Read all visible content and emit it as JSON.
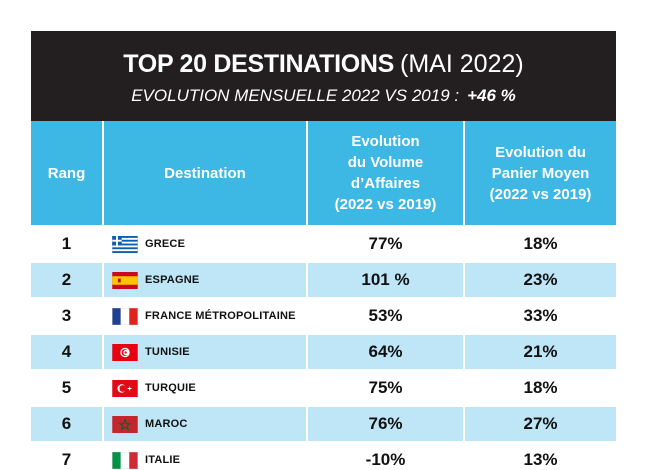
{
  "header": {
    "title_bold": "TOP 20 DESTINATIONS",
    "title_light": "(MAI 2022)",
    "subtitle": "EVOLUTION MENSUELLE 2022 VS 2019 :",
    "subtitle_value": "+46 %"
  },
  "table": {
    "columns": {
      "rang": "Rang",
      "destination": "Destination",
      "volume_line1": "Evolution",
      "volume_line2": "du Volume",
      "volume_line3": "d’Affaires",
      "volume_line4": "(2022 vs 2019)",
      "panier_line1": "Evolution du",
      "panier_line2": "Panier Moyen",
      "panier_line3": "(2022 vs 2019)"
    },
    "rows": [
      {
        "rang": "1",
        "destination": "GRECE",
        "flag": "greece-flag-icon",
        "volume": "77%",
        "panier": "18%"
      },
      {
        "rang": "2",
        "destination": "ESPAGNE",
        "flag": "spain-flag-icon",
        "volume": "101 %",
        "panier": "23%"
      },
      {
        "rang": "3",
        "destination": "FRANCE MÉTROPOLITAINE",
        "flag": "france-flag-icon",
        "volume": "53%",
        "panier": "33%"
      },
      {
        "rang": "4",
        "destination": "TUNISIE",
        "flag": "tunisia-flag-icon",
        "volume": "64%",
        "panier": "21%"
      },
      {
        "rang": "5",
        "destination": "TURQUIE",
        "flag": "turkey-flag-icon",
        "volume": "75%",
        "panier": "18%"
      },
      {
        "rang": "6",
        "destination": "MAROC",
        "flag": "morocco-flag-icon",
        "volume": "76%",
        "panier": "27%"
      },
      {
        "rang": "7",
        "destination": "ITALIE",
        "flag": "italy-flag-icon",
        "volume": "-10%",
        "panier": "13%"
      }
    ]
  },
  "colors": {
    "header_bg": "#231f20",
    "table_header_bg": "#3db7e4",
    "row_shade": "#bfe6f6"
  }
}
